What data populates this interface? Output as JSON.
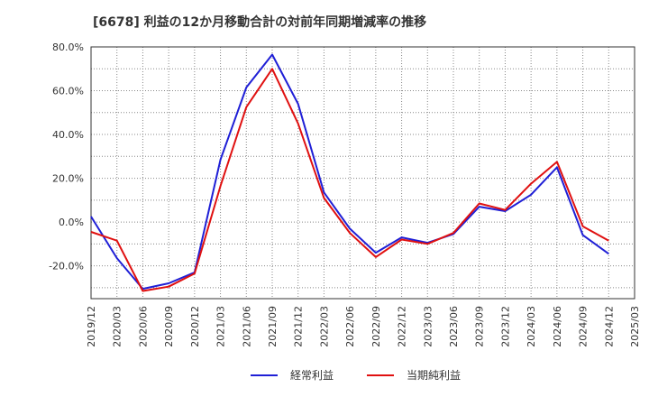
{
  "chart_data": {
    "type": "line",
    "title": "[6678]  利益の12か月移動合計の対前年同期増減率の推移",
    "xlabel": "",
    "ylabel": "",
    "ylim": [
      -35,
      80
    ],
    "yticks": [
      80,
      60,
      40,
      20,
      0,
      -20
    ],
    "ytick_labels": [
      "80.0%",
      "60.0%",
      "40.0%",
      "20.0%",
      "0.0%",
      "-20.0%"
    ],
    "categories": [
      "2019/12",
      "2020/03",
      "2020/06",
      "2020/09",
      "2020/12",
      "2021/03",
      "2021/06",
      "2021/09",
      "2021/12",
      "2022/03",
      "2022/06",
      "2022/09",
      "2022/12",
      "2023/03",
      "2023/06",
      "2023/09",
      "2023/12",
      "2024/03",
      "2024/06",
      "2024/09",
      "2024/12",
      "2025/03"
    ],
    "series": [
      {
        "name": "経常利益",
        "color": "#1f1fd6",
        "values": [
          2.5,
          -16.5,
          -30.5,
          -28.0,
          -23.0,
          28.5,
          61.5,
          76.5,
          54.0,
          13.5,
          -3.0,
          -14.0,
          -7.0,
          -9.5,
          -5.5,
          7.0,
          5.0,
          12.5,
          25.0,
          -6.0,
          -14.5,
          null
        ]
      },
      {
        "name": "当期純利益",
        "color": "#e01010",
        "values": [
          -4.5,
          -8.5,
          -31.5,
          -29.5,
          -23.5,
          16.5,
          52.5,
          70.0,
          45.0,
          11.0,
          -5.0,
          -16.0,
          -8.0,
          -10.0,
          -5.0,
          8.5,
          5.5,
          17.5,
          27.5,
          -2.0,
          -8.5,
          null
        ]
      }
    ]
  }
}
